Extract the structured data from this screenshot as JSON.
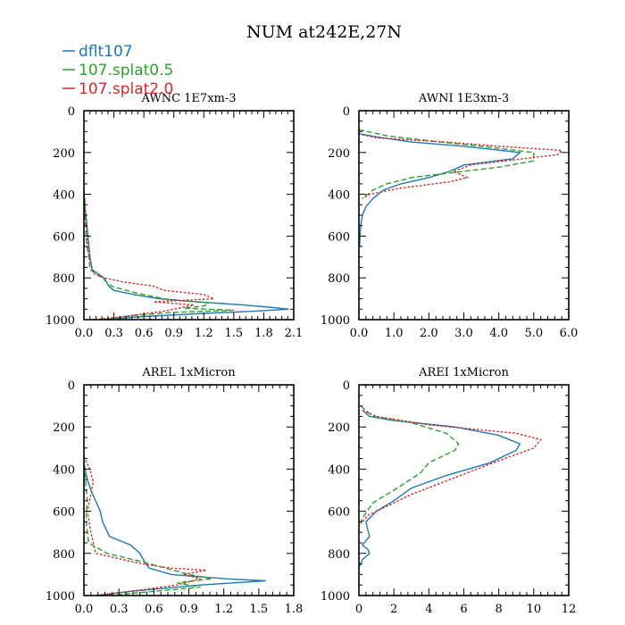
{
  "figure": {
    "title": "NUM at242E,27N",
    "legend": [
      {
        "label": "dflt107",
        "color": "#1f77b4",
        "dash": "solid"
      },
      {
        "label": "107.splat0.5",
        "color": "#2ca02c",
        "dash": "dashed"
      },
      {
        "label": "107.splat2.0",
        "color": "#d62728",
        "dash": "dotted"
      }
    ]
  },
  "chart_data": [
    {
      "type": "line",
      "title": "AWNC  1E7xm-3",
      "xlim": [
        0,
        2.1
      ],
      "ylim": [
        0,
        1000
      ],
      "y_inverted": true,
      "xticks": [
        0,
        0.3,
        0.6,
        0.9,
        1.2,
        1.5,
        1.8,
        2.1
      ],
      "xticklabels": [
        "0.0",
        "0.3",
        "0.6",
        "0.9",
        "1.2",
        "1.5",
        "1.8",
        "2.1"
      ],
      "yticks": [
        0,
        200,
        400,
        600,
        800,
        1000
      ],
      "series": [
        {
          "name": "dflt107",
          "x": [
            0,
            0,
            0.01,
            0.02,
            0.03,
            0.04,
            0.05,
            0.06,
            0.08,
            0.2,
            0.25,
            0.3,
            0.5,
            0.75,
            1.0,
            1.3,
            1.6,
            1.85,
            2.05,
            1.7,
            1.2,
            0.6,
            0.2
          ],
          "y": [
            380,
            400,
            450,
            500,
            550,
            600,
            650,
            700,
            760,
            800,
            840,
            860,
            880,
            900,
            910,
            920,
            930,
            940,
            950,
            960,
            970,
            985,
            1000
          ]
        },
        {
          "name": "107.splat0.5",
          "x": [
            0,
            0.01,
            0.01,
            0.02,
            0.02,
            0.03,
            0.05,
            0.06,
            0.18,
            0.28,
            0.5,
            0.8,
            1.0,
            1.25,
            1.2,
            1.0,
            1.5,
            0.9,
            0.5,
            0.2
          ],
          "y": [
            380,
            420,
            500,
            550,
            600,
            650,
            700,
            760,
            800,
            840,
            870,
            900,
            910,
            920,
            935,
            945,
            955,
            965,
            980,
            1000
          ]
        },
        {
          "name": "107.splat2.0",
          "x": [
            0,
            0,
            0.01,
            0.02,
            0.03,
            0.04,
            0.05,
            0.1,
            0.2,
            0.4,
            0.7,
            0.8,
            1.2,
            1.3,
            0.7,
            1.1,
            0.8,
            0.4,
            0.1
          ],
          "y": [
            380,
            430,
            500,
            550,
            600,
            650,
            700,
            780,
            800,
            820,
            840,
            860,
            880,
            900,
            915,
            930,
            960,
            985,
            1000
          ]
        }
      ]
    },
    {
      "type": "line",
      "title": "AWNI  1E3xm-3",
      "xlim": [
        0,
        6
      ],
      "ylim": [
        0,
        1000
      ],
      "y_inverted": true,
      "xticks": [
        0,
        1,
        2,
        3,
        4,
        5,
        6
      ],
      "xticklabels": [
        "0.0",
        "1.0",
        "2.0",
        "3.0",
        "4.0",
        "5.0",
        "6.0"
      ],
      "yticks": [
        0,
        200,
        400,
        600,
        800,
        1000
      ],
      "series": [
        {
          "name": "dflt107",
          "x": [
            0,
            0.5,
            1.5,
            3.0,
            4.6,
            4.4,
            3.0,
            2.6,
            2.0,
            1.2,
            0.7,
            0.4,
            0.2,
            0.1,
            0.05,
            0.03,
            0.02
          ],
          "y": [
            110,
            125,
            150,
            170,
            200,
            230,
            260,
            290,
            320,
            350,
            380,
            420,
            460,
            500,
            550,
            600,
            650
          ]
        },
        {
          "name": "107.splat0.5",
          "x": [
            0,
            0.8,
            1.8,
            3.5,
            5.0,
            5.0,
            4.0,
            2.5,
            1.5,
            0.8,
            0.4,
            0.1
          ],
          "y": [
            90,
            120,
            140,
            170,
            200,
            240,
            270,
            300,
            320,
            350,
            380,
            420
          ]
        },
        {
          "name": "107.splat2.0",
          "x": [
            0.1,
            0.5,
            2.5,
            4.0,
            5.8,
            5.7,
            3.2,
            2.7,
            3.1,
            2.6,
            1.7,
            1.2,
            0.9,
            0.3,
            0.1
          ],
          "y": [
            115,
            130,
            150,
            170,
            190,
            210,
            260,
            290,
            320,
            340,
            360,
            370,
            380,
            400,
            420
          ]
        }
      ]
    },
    {
      "type": "line",
      "title": "AREL  1xMicron",
      "xlim": [
        0,
        1.8
      ],
      "ylim": [
        0,
        1000
      ],
      "y_inverted": true,
      "xticks": [
        0,
        0.3,
        0.6,
        0.9,
        1.2,
        1.5,
        1.8
      ],
      "xticklabels": [
        "0.0",
        "0.3",
        "0.6",
        "0.9",
        "1.2",
        "1.5",
        "1.8"
      ],
      "yticks": [
        0,
        200,
        400,
        600,
        800,
        1000
      ],
      "series": [
        {
          "name": "dflt107",
          "x": [
            0,
            0.01,
            0.03,
            0.06,
            0.1,
            0.14,
            0.16,
            0.22,
            0.4,
            0.48,
            0.52,
            0.56,
            0.75,
            1.2,
            1.56,
            1.0,
            0.4,
            0.1
          ],
          "y": [
            370,
            400,
            450,
            500,
            550,
            600,
            650,
            720,
            760,
            800,
            840,
            870,
            900,
            920,
            930,
            950,
            980,
            1000
          ]
        },
        {
          "name": "107.splat0.5",
          "x": [
            0,
            0.01,
            0.02,
            0.03,
            0.02,
            0.02,
            0.04,
            0.2,
            0.5,
            0.7,
            0.9,
            1.1,
            0.8,
            1.0,
            0.5,
            0.2
          ],
          "y": [
            380,
            420,
            500,
            550,
            600,
            650,
            750,
            800,
            840,
            870,
            900,
            920,
            940,
            960,
            985,
            1000
          ]
        },
        {
          "name": "107.splat2.0",
          "x": [
            0,
            0.05,
            0.08,
            0.06,
            0.03,
            0.06,
            0.1,
            0.5,
            0.75,
            1.05,
            0.85,
            1.0,
            0.8,
            0.4,
            0.1
          ],
          "y": [
            340,
            400,
            460,
            520,
            600,
            700,
            800,
            850,
            870,
            880,
            900,
            920,
            950,
            980,
            1000
          ]
        }
      ]
    },
    {
      "type": "line",
      "title": "AREI  1xMicron",
      "xlim": [
        0,
        12
      ],
      "ylim": [
        0,
        1000
      ],
      "y_inverted": true,
      "xticks": [
        0,
        2,
        4,
        6,
        8,
        10,
        12
      ],
      "xticklabels": [
        "0",
        "2",
        "4",
        "6",
        "8",
        "10",
        "12"
      ],
      "yticks": [
        0,
        200,
        400,
        600,
        800,
        1000
      ],
      "series": [
        {
          "name": "dflt107",
          "x": [
            0.2,
            0.6,
            2.0,
            5.5,
            8.0,
            9.2,
            9.0,
            7.5,
            5.0,
            3.0,
            2.0,
            1.0,
            0.4,
            0.6,
            0.2,
            0.5,
            0.6,
            0.2,
            0.05
          ],
          "y": [
            120,
            150,
            170,
            200,
            240,
            280,
            310,
            370,
            430,
            490,
            550,
            600,
            650,
            720,
            760,
            780,
            800,
            830,
            860
          ]
        },
        {
          "name": "107.splat0.5",
          "x": [
            0.1,
            0.8,
            3.0,
            5.0,
            5.7,
            5.5,
            4.0,
            3.5,
            2.0,
            0.8,
            0.3,
            0.1
          ],
          "y": [
            100,
            150,
            180,
            230,
            280,
            310,
            370,
            420,
            500,
            560,
            620,
            650
          ]
        },
        {
          "name": "107.splat2.0",
          "x": [
            0.2,
            1.0,
            4.0,
            9.0,
            10.4,
            10.0,
            8.0,
            5.5,
            3.0,
            1.5,
            0.5,
            0.1
          ],
          "y": [
            120,
            150,
            190,
            230,
            260,
            300,
            360,
            440,
            520,
            580,
            620,
            660
          ]
        }
      ]
    }
  ]
}
